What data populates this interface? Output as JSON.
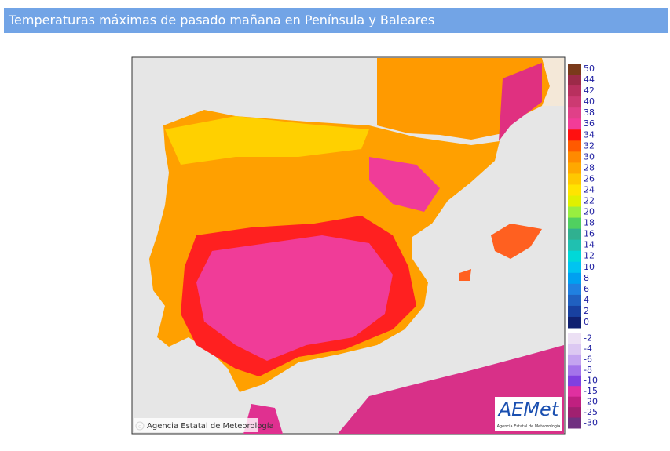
{
  "header": {
    "title": "Temperaturas máximas de pasado mañana en Península y Baleares"
  },
  "legend": {
    "upper": [
      {
        "label": 50,
        "color": "#7a3a1a"
      },
      {
        "label": 44,
        "color": "#9c2a48"
      },
      {
        "label": 42,
        "color": "#b8305e"
      },
      {
        "label": 40,
        "color": "#cc3a72"
      },
      {
        "label": 38,
        "color": "#e04088"
      },
      {
        "label": 36,
        "color": "#f23c98"
      },
      {
        "label": 34,
        "color": "#ff1010"
      },
      {
        "label": 32,
        "color": "#ff5a00"
      },
      {
        "label": 30,
        "color": "#ff8a00"
      },
      {
        "label": 28,
        "color": "#ffa800"
      },
      {
        "label": 26,
        "color": "#ffc800"
      },
      {
        "label": 24,
        "color": "#ffe400"
      },
      {
        "label": 22,
        "color": "#e0f000"
      },
      {
        "label": 20,
        "color": "#98ee40"
      },
      {
        "label": 18,
        "color": "#50d060"
      },
      {
        "label": 16,
        "color": "#30b090"
      },
      {
        "label": 14,
        "color": "#20c0b0"
      },
      {
        "label": 12,
        "color": "#00d8d8"
      },
      {
        "label": 10,
        "color": "#00c4f0"
      },
      {
        "label": 8,
        "color": "#00a0f0"
      },
      {
        "label": 6,
        "color": "#2080e0"
      },
      {
        "label": 4,
        "color": "#2060c0"
      },
      {
        "label": 2,
        "color": "#1840a0"
      },
      {
        "label": 0,
        "color": "#102070"
      }
    ],
    "lower": [
      {
        "label": -2,
        "color": "#ece0f4"
      },
      {
        "label": -4,
        "color": "#dcc8f2"
      },
      {
        "label": -6,
        "color": "#c4a4f0"
      },
      {
        "label": -8,
        "color": "#a474ea"
      },
      {
        "label": -10,
        "color": "#8040e0"
      },
      {
        "label": -15,
        "color": "#e030a0"
      },
      {
        "label": -20,
        "color": "#c02080"
      },
      {
        "label": -25,
        "color": "#a02070"
      },
      {
        "label": -30,
        "color": "#703080"
      }
    ]
  },
  "map": {
    "attribution": "Agencia Estatal de Meteorología",
    "logo": {
      "name": "AEMet",
      "subtitle": "Agencia Estatal de Meteorología"
    }
  }
}
